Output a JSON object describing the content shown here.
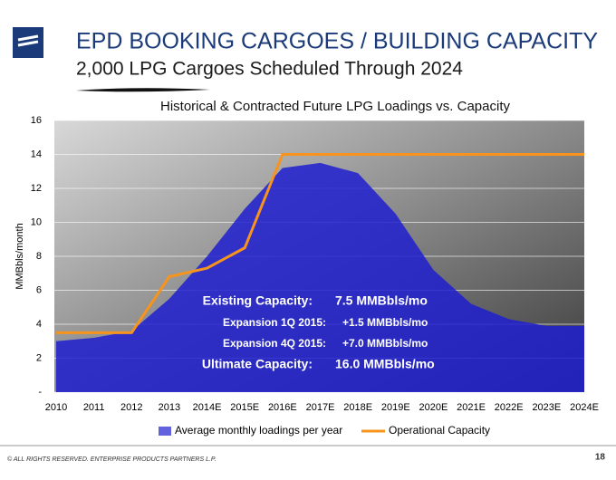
{
  "header": {
    "title": "EPD BOOKING CARGOES / BUILDING CAPACITY",
    "subtitle": "2,000 LPG Cargoes Scheduled Through 2024"
  },
  "chart_data": {
    "type": "area_line",
    "title": "Historical & Contracted Future LPG Loadings vs. Capacity",
    "y_label": "MMBbls/month",
    "categories": [
      "2010",
      "2011",
      "2012",
      "2013",
      "2014E",
      "2015E",
      "2016E",
      "2017E",
      "2018E",
      "2019E",
      "2020E",
      "2021E",
      "2022E",
      "2023E",
      "2024E"
    ],
    "series": [
      {
        "name": "Average monthly loadings per year",
        "color": "#1f1fd0",
        "kind": "area",
        "values": [
          3.0,
          3.2,
          3.6,
          5.5,
          8.0,
          10.8,
          13.2,
          13.5,
          12.9,
          10.5,
          7.2,
          5.2,
          4.3,
          3.9,
          3.9
        ]
      },
      {
        "name": "Operational Capacity",
        "color": "#f7941d",
        "kind": "line",
        "values": [
          3.5,
          3.5,
          3.5,
          6.8,
          7.3,
          8.5,
          14,
          14,
          14,
          14,
          14,
          14,
          14,
          14,
          14
        ]
      }
    ],
    "ylim": [
      0,
      16
    ],
    "yticks": [
      {
        "value": 0,
        "label": "-"
      },
      2,
      4,
      6,
      8,
      10,
      12,
      14,
      16
    ],
    "grid": true,
    "annotations": [
      [
        "Existing Capacity:",
        "7.5 MMBbls/mo"
      ],
      [
        "Expansion 1Q 2015:",
        "+1.5 MMBbls/mo"
      ],
      [
        "Expansion 4Q 2015:",
        "+7.0 MMBbls/mo"
      ],
      [
        "Ultimate Capacity:",
        "16.0 MMBbls/mo"
      ]
    ]
  },
  "footer": {
    "copyright": "© ALL RIGHTS RESERVED. ENTERPRISE PRODUCTS PARTNERS L.P.",
    "page": "18"
  }
}
